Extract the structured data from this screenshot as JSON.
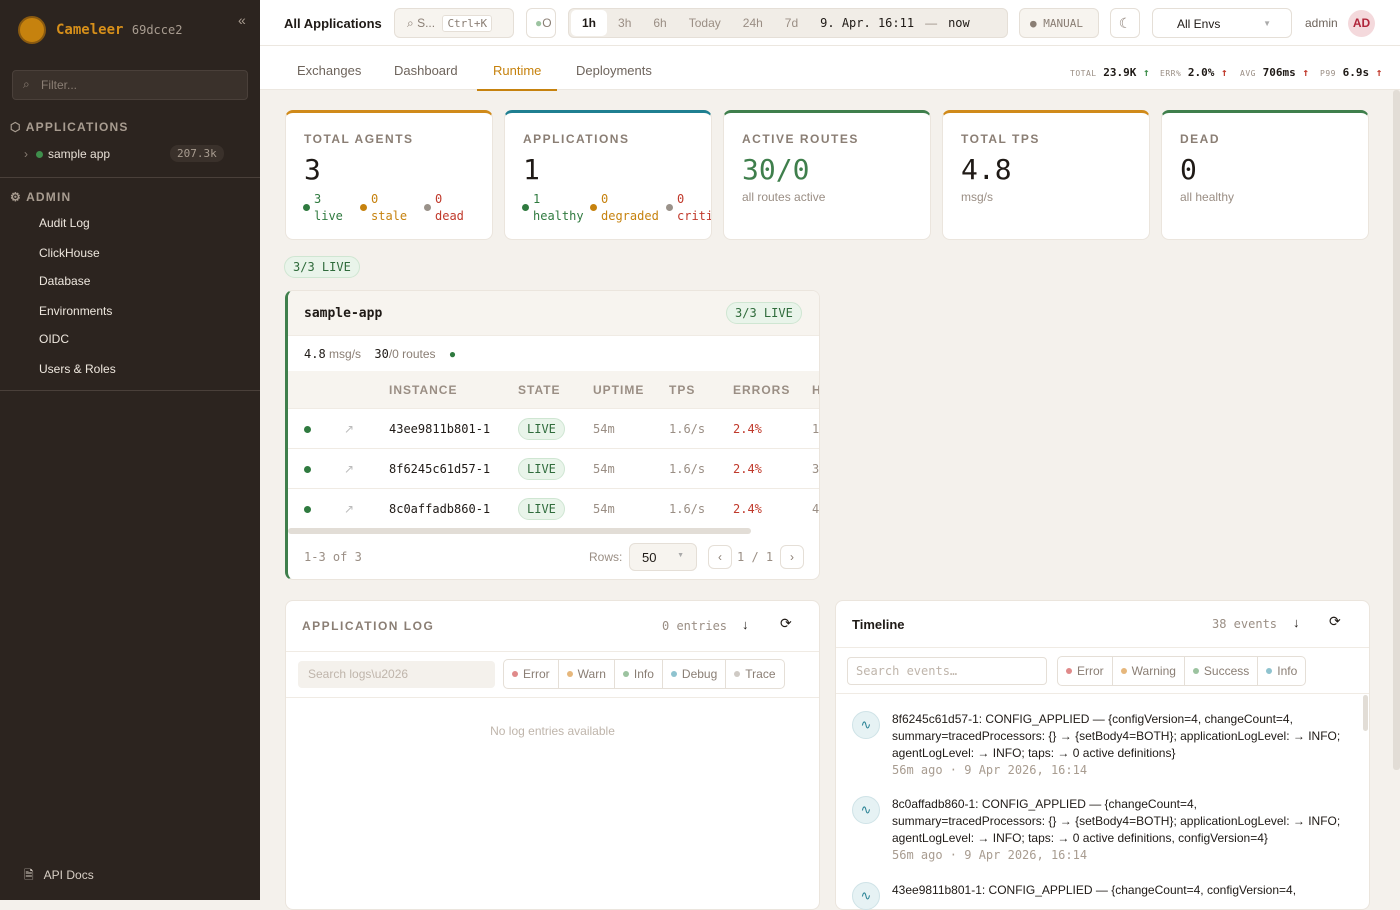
{
  "sidebar": {
    "brand": "Cameleer",
    "version": "69dcce2",
    "collapse": "«",
    "filter_placeholder": "Filter...",
    "applications_label": "APPLICATIONS",
    "apps": [
      {
        "name": "sample app",
        "count": "207.3k",
        "status_color": "#3f8f4c"
      }
    ],
    "admin_label": "ADMIN",
    "admin_items": [
      "Audit Log",
      "ClickHouse",
      "Database",
      "Environments",
      "OIDC",
      "Users & Roles"
    ],
    "api_docs": "API Docs"
  },
  "header": {
    "title": "All Applications",
    "search": "S...",
    "search_shortcut": "Ctrl+K",
    "status": "O",
    "time_ranges": [
      "1h",
      "3h",
      "6h",
      "Today",
      "24h",
      "7d"
    ],
    "active_range": "1h",
    "range_start": "9. Apr. 16:11",
    "range_sep": "—",
    "range_end": "now",
    "manual": "MANUAL",
    "env": "All Envs",
    "user": "admin",
    "avatar": "AD"
  },
  "tabs": [
    "Exchanges",
    "Dashboard",
    "Runtime",
    "Deployments"
  ],
  "active_tab": "Runtime",
  "kpis": [
    {
      "label": "TOTAL",
      "value": "23.9K",
      "arrow": "↑",
      "color": "#3f8f4c"
    },
    {
      "label": "ERR%",
      "value": "2.0%",
      "arrow": "↑",
      "color": "#c0392b"
    },
    {
      "label": "AVG",
      "value": "706ms",
      "arrow": "↑",
      "color": "#c0392b"
    },
    {
      "label": "P99",
      "value": "6.9s",
      "arrow": "↑",
      "color": "#c0392b"
    }
  ],
  "cards": [
    {
      "title": "TOTAL AGENTS",
      "value": "3",
      "color": "#d08a1a",
      "breakdown": [
        {
          "n": "3",
          "label": "live",
          "color": "#2f7a3f"
        },
        {
          "n": "0",
          "label": "stale",
          "color": "#c6820e"
        },
        {
          "n": "0",
          "label": "dead",
          "color": "#c0392b"
        }
      ]
    },
    {
      "title": "APPLICATIONS",
      "value": "1",
      "color": "#1f7f91",
      "breakdown": [
        {
          "n": "1",
          "label": "healthy",
          "color": "#2f7a3f"
        },
        {
          "n": "0",
          "label": "degraded",
          "color": "#c6820e"
        },
        {
          "n": "0",
          "label": "criti",
          "color": "#c0392b"
        }
      ]
    },
    {
      "title": "ACTIVE ROUTES",
      "value": "30/0",
      "sub": "all routes active",
      "color": "#3f7f4c"
    },
    {
      "title": "TOTAL TPS",
      "value": "4.8",
      "sub": "msg/s",
      "color": "#d08a1a"
    },
    {
      "title": "DEAD",
      "value": "0",
      "sub": "all healthy",
      "color": "#3f7f4c"
    }
  ],
  "live_badge": "3/3 LIVE",
  "app_card": {
    "name": "sample-app",
    "badge": "3/3 LIVE",
    "tps": "4.8",
    "tps_unit": "msg/s",
    "routes": "30",
    "routes_rest": "/0 routes",
    "columns": [
      "INSTANCE",
      "STATE",
      "UPTIME",
      "TPS",
      "ERRORS",
      "H"
    ],
    "rows": [
      {
        "instance": "43ee9811b801-1",
        "state": "LIVE",
        "uptime": "54m",
        "tps": "1.6/s",
        "errors": "2.4%",
        "h": "1"
      },
      {
        "instance": "8f6245c61d57-1",
        "state": "LIVE",
        "uptime": "54m",
        "tps": "1.6/s",
        "errors": "2.4%",
        "h": "3"
      },
      {
        "instance": "8c0affadb860-1",
        "state": "LIVE",
        "uptime": "54m",
        "tps": "1.6/s",
        "errors": "2.4%",
        "h": "4"
      }
    ],
    "range": "1-3 of 3",
    "rows_label": "Rows:",
    "rows_value": "50",
    "page": "1 / 1",
    "prev": "‹",
    "next": "›"
  },
  "log": {
    "title": "APPLICATION LOG",
    "count": "0 entries",
    "search_placeholder": "Search logs\\u2026",
    "levels": [
      {
        "l": "Error",
        "c": "#e08a8a"
      },
      {
        "l": "Warn",
        "c": "#e6b77c"
      },
      {
        "l": "Info",
        "c": "#9cc3a0"
      },
      {
        "l": "Debug",
        "c": "#8fc3cf"
      },
      {
        "l": "Trace",
        "c": "#cfcac4"
      }
    ],
    "empty": "No log entries available"
  },
  "timeline": {
    "title": "Timeline",
    "count": "38 events",
    "search_placeholder": "Search events…",
    "levels": [
      {
        "l": "Error",
        "c": "#e08a8a"
      },
      {
        "l": "Warning",
        "c": "#e6b77c"
      },
      {
        "l": "Success",
        "c": "#9cc3a0"
      },
      {
        "l": "Info",
        "c": "#8fc3cf"
      }
    ],
    "events": [
      {
        "text": "8f6245c61d57-1: CONFIG_APPLIED — {configVersion=4, changeCount=4, summary=tracedProcessors: {} → {setBody4=BOTH}; applicationLogLevel: → INFO; agentLogLevel: → INFO; taps: → 0 active definitions}",
        "time": "56m ago · 9 Apr 2026, 16:14"
      },
      {
        "text": "8c0affadb860-1: CONFIG_APPLIED — {changeCount=4, summary=tracedProcessors: {} → {setBody4=BOTH}; applicationLogLevel: → INFO; agentLogLevel: → INFO; taps: → 0 active definitions, configVersion=4}",
        "time": "56m ago · 9 Apr 2026, 16:14"
      },
      {
        "text": "43ee9811b801-1: CONFIG_APPLIED — {changeCount=4, configVersion=4,",
        "time": ""
      }
    ]
  }
}
